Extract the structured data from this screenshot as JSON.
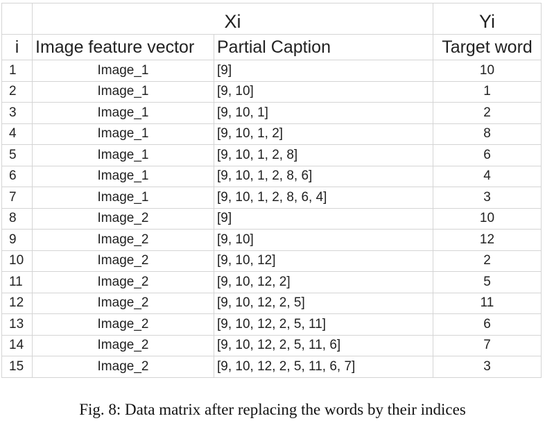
{
  "header": {
    "xi": "Xi",
    "yi": "Yi",
    "col_i": "i",
    "col_image": "Image feature vector",
    "col_caption": "Partial Caption",
    "col_target": "Target word"
  },
  "rows": [
    {
      "i": "1",
      "image": "Image_1",
      "caption": "[9]",
      "target": "10"
    },
    {
      "i": "2",
      "image": "Image_1",
      "caption": "[9, 10]",
      "target": "1"
    },
    {
      "i": "3",
      "image": "Image_1",
      "caption": "[9, 10, 1]",
      "target": "2"
    },
    {
      "i": "4",
      "image": "Image_1",
      "caption": "[9, 10, 1, 2]",
      "target": "8"
    },
    {
      "i": "5",
      "image": "Image_1",
      "caption": "[9, 10, 1, 2, 8]",
      "target": "6"
    },
    {
      "i": "6",
      "image": "Image_1",
      "caption": "[9, 10, 1, 2, 8, 6]",
      "target": "4"
    },
    {
      "i": "7",
      "image": "Image_1",
      "caption": "[9, 10, 1, 2, 8, 6, 4]",
      "target": "3"
    },
    {
      "i": "8",
      "image": "Image_2",
      "caption": "[9]",
      "target": "10"
    },
    {
      "i": "9",
      "image": "Image_2",
      "caption": "[9, 10]",
      "target": "12"
    },
    {
      "i": "10",
      "image": "Image_2",
      "caption": "[9, 10, 12]",
      "target": "2"
    },
    {
      "i": "11",
      "image": "Image_2",
      "caption": "[9, 10, 12, 2]",
      "target": "5"
    },
    {
      "i": "12",
      "image": "Image_2",
      "caption": "[9, 10, 12, 2, 5]",
      "target": "11"
    },
    {
      "i": "13",
      "image": "Image_2",
      "caption": "[9, 10, 12, 2, 5, 11]",
      "target": "6"
    },
    {
      "i": "14",
      "image": "Image_2",
      "caption": "[9, 10, 12, 2, 5, 11, 6]",
      "target": "7"
    },
    {
      "i": "15",
      "image": "Image_2",
      "caption": "[9, 10, 12, 2, 5, 11, 6, 7]",
      "target": "3"
    }
  ],
  "figure_caption": "Fig. 8: Data matrix after replacing the words by their indices"
}
